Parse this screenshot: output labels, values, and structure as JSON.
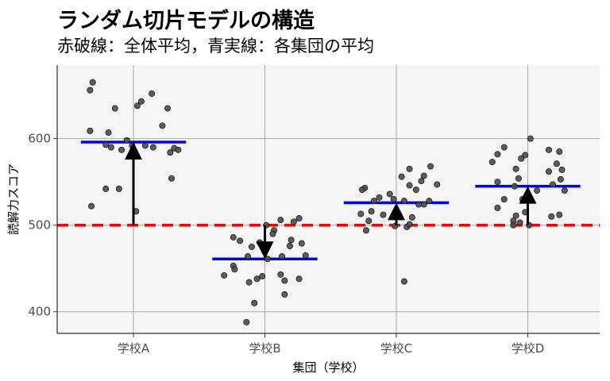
{
  "title": "ランダム切片モデルの構造",
  "subtitle": "赤破線：全体平均，青実線：各集団の平均",
  "chart_data": {
    "type": "scatter",
    "xlabel": "集団（学校）",
    "ylabel": "読解力スコア",
    "ylim": [
      375,
      685
    ],
    "yticks": [
      400,
      500,
      600
    ],
    "categories": [
      "学校A",
      "学校B",
      "学校C",
      "学校D"
    ],
    "grand_mean": 500,
    "group_means": [
      596,
      461,
      526,
      545
    ],
    "grid": true,
    "colors": {
      "points": "#4d4d4d",
      "group_mean_line": "#0000ff",
      "grand_mean_line": "#ff0000",
      "arrow": "#000000",
      "panel": "#f5f5f5",
      "grid": "#a8a8a8"
    },
    "series": [
      {
        "values": [
          {
            "dx": -0.31,
            "y": 665
          },
          {
            "dx": -0.33,
            "y": 656
          },
          {
            "dx": 0.14,
            "y": 652
          },
          {
            "dx": 0.06,
            "y": 643
          },
          {
            "dx": 0.03,
            "y": 638
          },
          {
            "dx": -0.14,
            "y": 635
          },
          {
            "dx": 0.26,
            "y": 635
          },
          {
            "dx": 0.22,
            "y": 615
          },
          {
            "dx": -0.33,
            "y": 609
          },
          {
            "dx": -0.19,
            "y": 607
          },
          {
            "dx": -0.05,
            "y": 598
          },
          {
            "dx": -0.21,
            "y": 593
          },
          {
            "dx": -0.17,
            "y": 590
          },
          {
            "dx": -0.09,
            "y": 587
          },
          {
            "dx": -0.01,
            "y": 592
          },
          {
            "dx": 0.09,
            "y": 592
          },
          {
            "dx": 0.15,
            "y": 590
          },
          {
            "dx": 0.31,
            "y": 589
          },
          {
            "dx": 0.34,
            "y": 587
          },
          {
            "dx": 0.28,
            "y": 584
          },
          {
            "dx": 0.29,
            "y": 554
          },
          {
            "dx": -0.21,
            "y": 542
          },
          {
            "dx": -0.11,
            "y": 542
          },
          {
            "dx": -0.32,
            "y": 522
          },
          {
            "dx": 0.02,
            "y": 516
          }
        ]
      },
      {
        "values": [
          {
            "dx": 0.26,
            "y": 508
          },
          {
            "dx": 0.12,
            "y": 506
          },
          {
            "dx": 0.22,
            "y": 504
          },
          {
            "dx": 0.01,
            "y": 500
          },
          {
            "dx": 0.07,
            "y": 494
          },
          {
            "dx": 0.06,
            "y": 490
          },
          {
            "dx": -0.24,
            "y": 486
          },
          {
            "dx": -0.04,
            "y": 480
          },
          {
            "dx": -0.02,
            "y": 478
          },
          {
            "dx": -0.1,
            "y": 475
          },
          {
            "dx": -0.19,
            "y": 482
          },
          {
            "dx": 0.2,
            "y": 483
          },
          {
            "dx": 0.28,
            "y": 479
          },
          {
            "dx": 0.19,
            "y": 476
          },
          {
            "dx": 0.13,
            "y": 464
          },
          {
            "dx": 0.31,
            "y": 465
          },
          {
            "dx": -0.13,
            "y": 464
          },
          {
            "dx": 0.02,
            "y": 461
          },
          {
            "dx": -0.24,
            "y": 453
          },
          {
            "dx": -0.23,
            "y": 449
          },
          {
            "dx": -0.31,
            "y": 442
          },
          {
            "dx": 0.12,
            "y": 443
          },
          {
            "dx": 0.26,
            "y": 438
          },
          {
            "dx": 0.15,
            "y": 436
          },
          {
            "dx": -0.06,
            "y": 438
          },
          {
            "dx": -0.02,
            "y": 441
          },
          {
            "dx": -0.12,
            "y": 434
          },
          {
            "dx": 0.15,
            "y": 420
          },
          {
            "dx": -0.08,
            "y": 410
          },
          {
            "dx": -0.14,
            "y": 388
          }
        ]
      },
      {
        "values": [
          {
            "dx": 0.26,
            "y": 568
          },
          {
            "dx": 0.1,
            "y": 565
          },
          {
            "dx": 0.21,
            "y": 557
          },
          {
            "dx": 0.04,
            "y": 556
          },
          {
            "dx": 0.19,
            "y": 551
          },
          {
            "dx": 0.1,
            "y": 546
          },
          {
            "dx": 0.15,
            "y": 541
          },
          {
            "dx": 0.31,
            "y": 547
          },
          {
            "dx": -0.24,
            "y": 543
          },
          {
            "dx": -0.26,
            "y": 541
          },
          {
            "dx": -0.05,
            "y": 536
          },
          {
            "dx": -0.13,
            "y": 532
          },
          {
            "dx": -0.02,
            "y": 530
          },
          {
            "dx": 0.06,
            "y": 528
          },
          {
            "dx": 0.25,
            "y": 528
          },
          {
            "dx": -0.17,
            "y": 528
          },
          {
            "dx": 0.21,
            "y": 524
          },
          {
            "dx": 0.17,
            "y": 524
          },
          {
            "dx": -0.19,
            "y": 516
          },
          {
            "dx": -0.27,
            "y": 513
          },
          {
            "dx": -0.1,
            "y": 512
          },
          {
            "dx": 0.12,
            "y": 509
          },
          {
            "dx": -0.21,
            "y": 505
          },
          {
            "dx": -0.01,
            "y": 499
          },
          {
            "dx": 0.08,
            "y": 498
          },
          {
            "dx": 0.1,
            "y": 501
          },
          {
            "dx": -0.23,
            "y": 494
          },
          {
            "dx": 0.06,
            "y": 435
          }
        ]
      },
      {
        "values": [
          {
            "dx": 0.02,
            "y": 600
          },
          {
            "dx": -0.18,
            "y": 590
          },
          {
            "dx": 0.16,
            "y": 587
          },
          {
            "dx": 0.24,
            "y": 585
          },
          {
            "dx": -0.23,
            "y": 582
          },
          {
            "dx": -0.02,
            "y": 581
          },
          {
            "dx": -0.05,
            "y": 577
          },
          {
            "dx": -0.27,
            "y": 573
          },
          {
            "dx": 0.22,
            "y": 571
          },
          {
            "dx": 0.26,
            "y": 564
          },
          {
            "dx": -0.09,
            "y": 565
          },
          {
            "dx": 0.16,
            "y": 562
          },
          {
            "dx": -0.07,
            "y": 554
          },
          {
            "dx": 0.25,
            "y": 553
          },
          {
            "dx": -0.23,
            "y": 550
          },
          {
            "dx": 0.19,
            "y": 547
          },
          {
            "dx": -0.1,
            "y": 545
          },
          {
            "dx": 0.07,
            "y": 540
          },
          {
            "dx": 0.28,
            "y": 540
          },
          {
            "dx": -0.04,
            "y": 530
          },
          {
            "dx": -0.18,
            "y": 530
          },
          {
            "dx": -0.23,
            "y": 520
          },
          {
            "dx": -0.02,
            "y": 515
          },
          {
            "dx": 0.24,
            "y": 512
          },
          {
            "dx": -0.09,
            "y": 511
          },
          {
            "dx": -0.11,
            "y": 505
          },
          {
            "dx": -0.06,
            "y": 503
          },
          {
            "dx": -0.11,
            "y": 500
          },
          {
            "dx": 0.01,
            "y": 500
          },
          {
            "dx": 0.18,
            "y": 510
          }
        ]
      }
    ]
  }
}
